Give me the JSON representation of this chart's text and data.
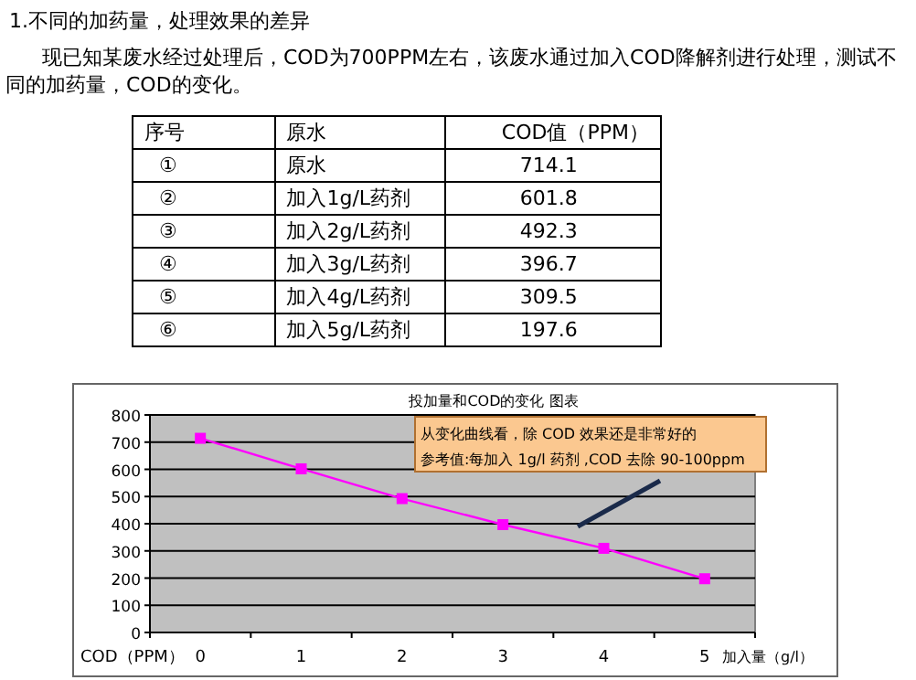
{
  "chart_data": {
    "type": "line",
    "title": "投加量和COD的变化 图表",
    "xlabel": "加入量（g/l）",
    "ylabel": "COD（PPM）",
    "annotations": [
      "1.不同的加药量，处理效果的差异",
      "现已知某废水经过处理后，COD为700PPM左右，该废水通过加入COD降解剂进行处理，测试不同的加药量，COD的变化。",
      "从变化曲线看，除 COD 效果还是非常好的",
      "参考值:每加入 1g/l 药剂 ,COD 去除 90-100ppm",
      "序号",
      "原水",
      "COD值（PPM）",
      "①",
      "②",
      "③",
      "④",
      "⑤",
      "⑥",
      "原水",
      "加入1g/L药剂",
      "加入2g/L药剂",
      "加入3g/L药剂",
      "加入4g/L药剂",
      "加入5g/L药剂",
      "714.1",
      "601.8",
      "492.3",
      "396.7",
      "309.5",
      "197.6"
    ],
    "categories": [
      "0",
      "1",
      "2",
      "3",
      "4",
      "5"
    ],
    "series": [
      {
        "color": "#ff00ff",
        "values": [
          714.1,
          601.8,
          492.3,
          396.7,
          309.5,
          197.6
        ]
      }
    ],
    "ylim": [
      0,
      800
    ],
    "yticks": [
      0,
      100,
      200,
      300,
      400,
      500,
      600,
      700,
      800
    ],
    "grid": "y",
    "marker": "square",
    "line_style": "solid"
  }
}
